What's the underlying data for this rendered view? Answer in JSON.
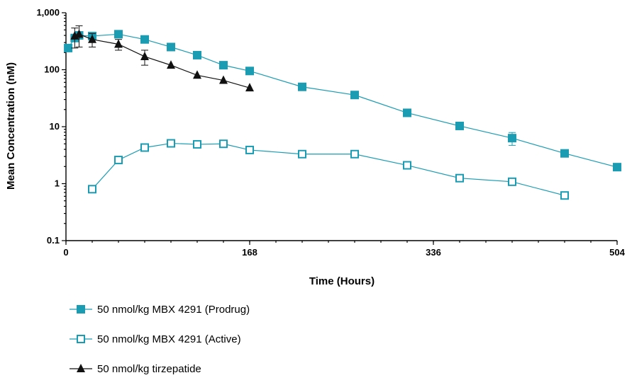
{
  "chart_data": {
    "type": "line",
    "title": "",
    "xlabel": "Time (Hours)",
    "ylabel": "Mean Concentration (nM)",
    "xlim": [
      0,
      504
    ],
    "ylim": [
      0.1,
      1000
    ],
    "yscale": "log",
    "x_ticks": [
      0,
      168,
      336,
      504
    ],
    "x_minor_step": 24,
    "y_ticks": [
      0.1,
      1,
      10,
      100,
      1000
    ],
    "x_tick_labels": [
      "0",
      "168",
      "336",
      "504"
    ],
    "y_tick_labels": [
      "0.1",
      "1",
      "10",
      "100",
      "1,000"
    ],
    "grid": false,
    "legend_position": "bottom-left",
    "series": [
      {
        "name": "50 nmol/kg MBX 4291 (Prodrug)",
        "color": "#1b9cb3",
        "marker": "square-filled",
        "x": [
          2,
          8,
          12,
          24,
          48,
          72,
          96,
          120,
          144,
          168,
          216,
          264,
          312,
          360,
          408,
          456,
          504
        ],
        "y": [
          240,
          360,
          400,
          390,
          420,
          340,
          250,
          180,
          120,
          95,
          50,
          36,
          17.5,
          10.3,
          6.3,
          3.4,
          1.95
        ],
        "err": [
          null,
          null,
          null,
          null,
          null,
          null,
          null,
          null,
          null,
          null,
          null,
          null,
          null,
          null,
          1.6,
          null,
          null
        ]
      },
      {
        "name": "50 nmol/kg MBX 4291 (Active)",
        "color": "#1b9cb3",
        "marker": "square-open",
        "x": [
          24,
          48,
          72,
          96,
          120,
          144,
          168,
          216,
          264,
          312,
          360,
          408,
          456
        ],
        "y": [
          0.8,
          2.6,
          4.3,
          5.1,
          4.9,
          5.0,
          3.9,
          3.3,
          3.3,
          2.1,
          1.25,
          1.08,
          0.62
        ],
        "err": [
          null,
          null,
          null,
          null,
          null,
          null,
          null,
          null,
          null,
          null,
          null,
          null,
          null
        ]
      },
      {
        "name": "50 nmol/kg tirzepatide",
        "color": "#111111",
        "marker": "triangle-filled",
        "x": [
          8,
          12,
          24,
          48,
          72,
          96,
          120,
          144,
          168
        ],
        "y": [
          390,
          420,
          340,
          280,
          170,
          120,
          80,
          65,
          48
        ],
        "err": [
          150,
          170,
          90,
          60,
          50,
          null,
          null,
          null,
          null
        ]
      }
    ]
  }
}
